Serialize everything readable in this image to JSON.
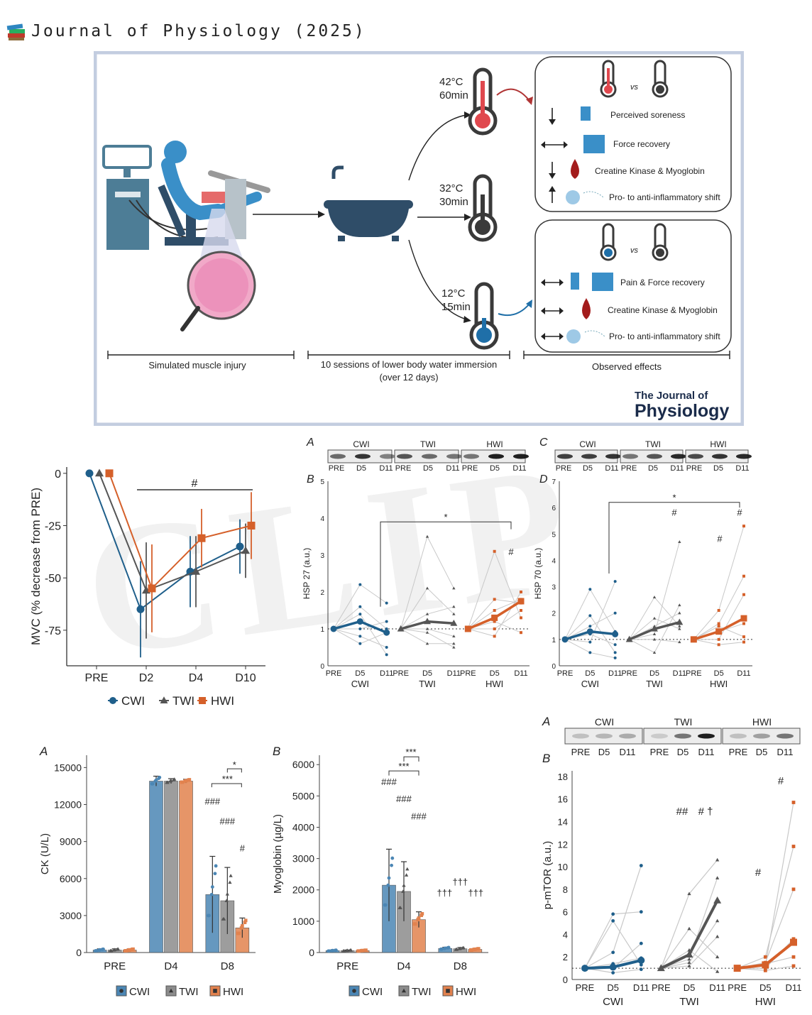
{
  "header": {
    "title": "Journal of Physiology (2025)",
    "icon": "books-icon"
  },
  "abstract": {
    "hot": {
      "temp": "42°C",
      "time": "60min"
    },
    "thermo": {
      "temp": "32°C",
      "time": "30min"
    },
    "cold": {
      "temp": "12°C",
      "time": "15min"
    },
    "vs": "vs",
    "hot_effects": [
      "Perceived soreness",
      "Force recovery",
      "Creatine Kinase & Myoglobin",
      "Pro- to anti-inflammatory shift"
    ],
    "cold_effects": [
      "Pain & Force recovery",
      "Creatine Kinase & Myoglobin",
      "Pro- to anti-inflammatory shift"
    ],
    "captions": {
      "injury": "Simulated muscle injury",
      "immersion_1": "10 sessions of lower body water immersion",
      "immersion_2": "(over 12 days)",
      "effects": "Observed effects"
    },
    "logo_1": "The Journal of",
    "logo_2": "Physiology",
    "colors": {
      "hot": "#e0484e",
      "cold": "#1f6fa8",
      "neutral": "#3a3a3a",
      "frame": "#c3cde0"
    }
  },
  "mvc": {
    "ylabel": "MVC (% decrease from PRE)",
    "sig": "#",
    "legend": [
      "CWI",
      "TWI",
      "HWI"
    ],
    "chart_data": {
      "type": "line",
      "categories": [
        "PRE",
        "D2",
        "D4",
        "D10"
      ],
      "ylim": [
        -92,
        3
      ],
      "yticks": [
        0,
        -25,
        -50,
        -75
      ],
      "series": [
        {
          "name": "CWI",
          "color": "#1f5f8b",
          "marker": "circle",
          "values": [
            0,
            -65,
            -47,
            -35
          ],
          "err": [
            0,
            23,
            17,
            13
          ]
        },
        {
          "name": "TWI",
          "color": "#555555",
          "marker": "triangle",
          "values": [
            0,
            -56,
            -47,
            -37
          ],
          "err": [
            0,
            23,
            17,
            13
          ]
        },
        {
          "name": "HWI",
          "color": "#d5602a",
          "marker": "square",
          "values": [
            0,
            -55,
            -31,
            -25
          ],
          "err": [
            0,
            21,
            14,
            16
          ]
        }
      ]
    }
  },
  "hsp27": {
    "panel_a": "A",
    "panel_b": "B",
    "groups": [
      "CWI",
      "TWI",
      "HWI"
    ],
    "lanes": [
      "PRE",
      "D5",
      "D11"
    ],
    "ylabel": "HSP 27 (a.u.)",
    "sig_star": "*",
    "sig_hash": "#",
    "chart_data": {
      "type": "line",
      "ylim": [
        0,
        5
      ],
      "yticks": [
        0,
        1,
        2,
        3,
        4,
        5
      ],
      "series": [
        {
          "name": "CWI",
          "color": "#1f5f8b",
          "means": [
            1.0,
            1.2,
            0.9
          ]
        },
        {
          "name": "TWI",
          "color": "#555555",
          "means": [
            1.0,
            1.2,
            1.15
          ]
        },
        {
          "name": "HWI",
          "color": "#d5602a",
          "means": [
            1.0,
            1.3,
            1.75
          ]
        }
      ]
    }
  },
  "hsp70": {
    "panel_c": "C",
    "panel_d": "D",
    "groups": [
      "CWI",
      "TWI",
      "HWI"
    ],
    "lanes": [
      "PRE",
      "D5",
      "D11"
    ],
    "ylabel": "HSP 70 (a.u.)",
    "sig_star": "*",
    "sig_hash": "#",
    "chart_data": {
      "type": "line",
      "ylim": [
        0,
        7
      ],
      "yticks": [
        0,
        1,
        2,
        3,
        4,
        5,
        6,
        7
      ],
      "series": [
        {
          "name": "CWI",
          "color": "#1f5f8b",
          "means": [
            1.0,
            1.3,
            1.2
          ]
        },
        {
          "name": "TWI",
          "color": "#555555",
          "means": [
            1.0,
            1.4,
            1.65
          ]
        },
        {
          "name": "HWI",
          "color": "#d5602a",
          "means": [
            1.0,
            1.3,
            1.8
          ]
        }
      ]
    }
  },
  "ck": {
    "panel": "A",
    "ylabel": "CK (U/L)",
    "legend": [
      "CWI",
      "TWI",
      "HWI"
    ],
    "sig": {
      "hash3": "###",
      "hash1": "#",
      "star1": "*",
      "star3": "***"
    },
    "chart_data": {
      "type": "bar",
      "categories": [
        "PRE",
        "D4",
        "D8"
      ],
      "ylim": [
        0,
        16000
      ],
      "yticks": [
        0,
        3000,
        6000,
        9000,
        12000,
        15000
      ],
      "series": [
        {
          "name": "CWI",
          "color": "#4b86b4",
          "values": [
            200,
            13900,
            4700
          ],
          "err": [
            100,
            400,
            3100
          ]
        },
        {
          "name": "TWI",
          "color": "#8c8c8c",
          "values": [
            200,
            13900,
            4200
          ],
          "err": [
            100,
            200,
            2700
          ]
        },
        {
          "name": "HWI",
          "color": "#e2824e",
          "values": [
            200,
            13900,
            2000
          ],
          "err": [
            100,
            150,
            800
          ]
        }
      ]
    }
  },
  "myo": {
    "panel": "B",
    "ylabel": "Myoglobin (µg/L)",
    "legend": [
      "CWI",
      "TWI",
      "HWI"
    ],
    "sig": {
      "hash3": "###",
      "star3": "***",
      "dagger3": "†††"
    },
    "chart_data": {
      "type": "bar",
      "categories": [
        "PRE",
        "D4",
        "D8"
      ],
      "ylim": [
        0,
        6300
      ],
      "yticks": [
        0,
        1000,
        2000,
        3000,
        4000,
        5000,
        6000
      ],
      "series": [
        {
          "name": "CWI",
          "color": "#4b86b4",
          "values": [
            60,
            2150,
            130
          ],
          "err": [
            20,
            1150,
            40
          ]
        },
        {
          "name": "TWI",
          "color": "#8c8c8c",
          "values": [
            60,
            1950,
            120
          ],
          "err": [
            20,
            950,
            40
          ]
        },
        {
          "name": "HWI",
          "color": "#e2824e",
          "values": [
            60,
            1050,
            100
          ],
          "err": [
            20,
            250,
            30
          ]
        }
      ]
    }
  },
  "mtor": {
    "panel_a": "A",
    "panel_b": "B",
    "groups": [
      "CWI",
      "TWI",
      "HWI"
    ],
    "lanes": [
      "PRE",
      "D5",
      "D11"
    ],
    "ylabel": "p-mTOR (a.u.)",
    "sig": {
      "hash2": "##",
      "hash_dagger": "# †",
      "hash1": "#"
    },
    "chart_data": {
      "type": "line",
      "ylim": [
        0,
        18.5
      ],
      "yticks": [
        0,
        2,
        4,
        6,
        8,
        10,
        12,
        14,
        16,
        18
      ],
      "series": [
        {
          "name": "CWI",
          "color": "#1f5f8b",
          "means": [
            1.0,
            1.1,
            1.7
          ]
        },
        {
          "name": "TWI",
          "color": "#555555",
          "means": [
            1.0,
            2.2,
            7.0
          ]
        },
        {
          "name": "HWI",
          "color": "#d5602a",
          "means": [
            1.0,
            1.3,
            3.3
          ]
        }
      ]
    }
  }
}
